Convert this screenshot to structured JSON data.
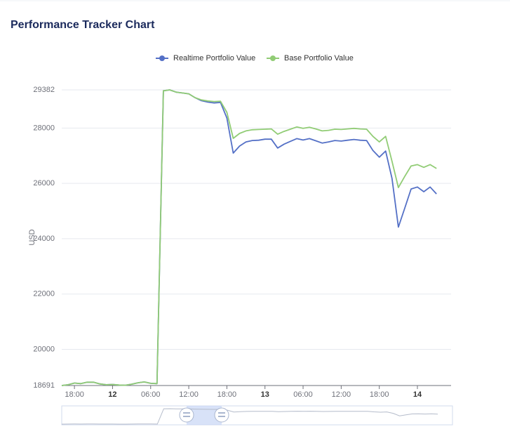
{
  "title": "Performance Tracker Chart",
  "chart_data": {
    "type": "line",
    "ylabel": "USD",
    "x": [
      -8,
      -7,
      -6,
      -5,
      -4,
      -3,
      -2,
      -1,
      0,
      1,
      2,
      3,
      4,
      5,
      6,
      7,
      8,
      9,
      10,
      11,
      12,
      13,
      14,
      15,
      16,
      17,
      18,
      19,
      20,
      21,
      22,
      23,
      24,
      25,
      26,
      27,
      28,
      29,
      30,
      31,
      32,
      33,
      34,
      35,
      36,
      37,
      38,
      39,
      40,
      41,
      42,
      43,
      44,
      45,
      46,
      47,
      48,
      49,
      50,
      51
    ],
    "xlim": [
      -8,
      53.3
    ],
    "xticks": [
      {
        "value": -6,
        "label": "18:00"
      },
      {
        "value": 0,
        "label": "12"
      },
      {
        "value": 6,
        "label": "06:00"
      },
      {
        "value": 12,
        "label": "12:00"
      },
      {
        "value": 18,
        "label": "18:00"
      },
      {
        "value": 24,
        "label": "13"
      },
      {
        "value": 30,
        "label": "06:00"
      },
      {
        "value": 36,
        "label": "12:00"
      },
      {
        "value": 42,
        "label": "18:00"
      },
      {
        "value": 48,
        "label": "14"
      }
    ],
    "ylim": [
      18691,
      29382
    ],
    "yticks": [
      18691,
      20000,
      22000,
      24000,
      26000,
      28000,
      29382
    ],
    "grid": true,
    "legend": "top",
    "series": [
      {
        "name": "Realtime Portfolio Value",
        "color": "#5470c6",
        "values": [
          18691,
          18720,
          18780,
          18760,
          18810,
          18810,
          18750,
          18720,
          18730,
          18710,
          18700,
          18740,
          18790,
          18820,
          18770,
          18760,
          29350,
          29382,
          29300,
          29270,
          29240,
          29100,
          28990,
          28940,
          28910,
          28930,
          28366,
          27096,
          27350,
          27500,
          27550,
          27560,
          27600,
          27600,
          27280,
          27420,
          27520,
          27620,
          27570,
          27620,
          27540,
          27460,
          27500,
          27550,
          27530,
          27560,
          27590,
          27560,
          27550,
          27190,
          26950,
          27170,
          26180,
          24420,
          25100,
          25800,
          25870,
          25700,
          25870,
          25620
        ]
      },
      {
        "name": "Base Portfolio Value",
        "color": "#91cc75",
        "values": [
          18691,
          18720,
          18780,
          18760,
          18810,
          18810,
          18750,
          18720,
          18730,
          18710,
          18700,
          18740,
          18790,
          18820,
          18770,
          18760,
          29350,
          29382,
          29300,
          29270,
          29240,
          29100,
          29020,
          28980,
          28960,
          28970,
          28570,
          27630,
          27808,
          27900,
          27940,
          27950,
          27960,
          27970,
          27780,
          27880,
          27960,
          28040,
          27990,
          28030,
          27970,
          27900,
          27920,
          27960,
          27950,
          27970,
          27990,
          27970,
          27960,
          27700,
          27500,
          27700,
          26800,
          25850,
          26250,
          26630,
          26680,
          26580,
          26680,
          26540
        ]
      }
    ]
  }
}
